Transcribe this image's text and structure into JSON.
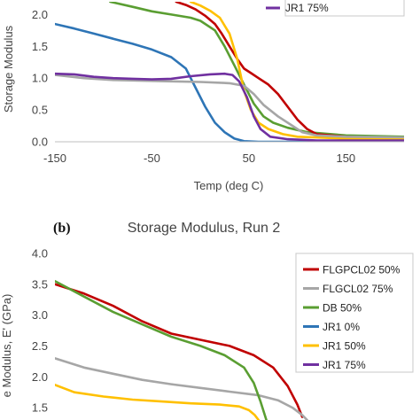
{
  "chart_data": [
    {
      "type": "line",
      "panel": "",
      "title": "",
      "xlabel": "Temp (deg C)",
      "ylabel": "Storage Modulus",
      "xlim": [
        -150,
        210
      ],
      "ylim": [
        0,
        2.2
      ],
      "xticks": [
        "-150",
        "-50",
        "50",
        "150"
      ],
      "yticks": [
        "0.0",
        "0.5",
        "1.0",
        "1.5",
        "2.0"
      ],
      "grid": false,
      "legend": {
        "placement": "top-right",
        "entries": [
          "JR1 75%"
        ],
        "colors": [
          "#7030a0"
        ]
      },
      "series": [
        {
          "name": "",
          "color": "#2e75b6",
          "points": [
            [
              -150,
              1.85
            ],
            [
              -130,
              1.78
            ],
            [
              -110,
              1.7
            ],
            [
              -90,
              1.62
            ],
            [
              -70,
              1.54
            ],
            [
              -50,
              1.45
            ],
            [
              -30,
              1.33
            ],
            [
              -15,
              1.15
            ],
            [
              -5,
              0.85
            ],
            [
              5,
              0.55
            ],
            [
              15,
              0.3
            ],
            [
              25,
              0.15
            ],
            [
              35,
              0.05
            ],
            [
              45,
              0.01
            ],
            [
              60,
              0.0
            ],
            [
              80,
              0.0
            ],
            [
              210,
              0.0
            ]
          ]
        },
        {
          "name": "",
          "color": "#5a9e32",
          "points": [
            [
              -93,
              2.2
            ],
            [
              -70,
              2.12
            ],
            [
              -50,
              2.05
            ],
            [
              -30,
              2.0
            ],
            [
              -10,
              1.95
            ],
            [
              0,
              1.9
            ],
            [
              15,
              1.75
            ],
            [
              25,
              1.5
            ],
            [
              35,
              1.2
            ],
            [
              45,
              0.9
            ],
            [
              55,
              0.6
            ],
            [
              65,
              0.4
            ],
            [
              75,
              0.3
            ],
            [
              90,
              0.22
            ],
            [
              110,
              0.15
            ],
            [
              150,
              0.1
            ],
            [
              210,
              0.08
            ]
          ]
        },
        {
          "name": "",
          "color": "#c00000",
          "points": [
            [
              -25,
              2.2
            ],
            [
              -15,
              2.15
            ],
            [
              -5,
              2.08
            ],
            [
              5,
              1.98
            ],
            [
              15,
              1.85
            ],
            [
              22,
              1.7
            ],
            [
              30,
              1.5
            ],
            [
              38,
              1.3
            ],
            [
              45,
              1.15
            ],
            [
              52,
              1.08
            ],
            [
              60,
              1.0
            ],
            [
              70,
              0.9
            ],
            [
              80,
              0.75
            ],
            [
              90,
              0.55
            ],
            [
              100,
              0.35
            ],
            [
              110,
              0.2
            ],
            [
              120,
              0.12
            ],
            [
              150,
              0.08
            ],
            [
              210,
              0.05
            ]
          ]
        },
        {
          "name": "",
          "color": "#ffc000",
          "points": [
            [
              -10,
              2.2
            ],
            [
              0,
              2.14
            ],
            [
              10,
              2.06
            ],
            [
              20,
              1.95
            ],
            [
              30,
              1.7
            ],
            [
              38,
              1.3
            ],
            [
              45,
              0.8
            ],
            [
              52,
              0.5
            ],
            [
              60,
              0.3
            ],
            [
              70,
              0.2
            ],
            [
              85,
              0.12
            ],
            [
              100,
              0.08
            ],
            [
              150,
              0.05
            ],
            [
              210,
              0.04
            ]
          ]
        },
        {
          "name": "",
          "color": "#a6a6a6",
          "points": [
            [
              -150,
              1.05
            ],
            [
              -120,
              1.0
            ],
            [
              -90,
              0.97
            ],
            [
              -60,
              0.96
            ],
            [
              -30,
              0.95
            ],
            [
              0,
              0.94
            ],
            [
              30,
              0.92
            ],
            [
              45,
              0.88
            ],
            [
              55,
              0.75
            ],
            [
              65,
              0.58
            ],
            [
              80,
              0.4
            ],
            [
              95,
              0.25
            ],
            [
              105,
              0.15
            ],
            [
              120,
              0.1
            ],
            [
              150,
              0.08
            ],
            [
              210,
              0.07
            ]
          ]
        },
        {
          "name": "JR1 75%",
          "color": "#7030a0",
          "points": [
            [
              -150,
              1.07
            ],
            [
              -130,
              1.06
            ],
            [
              -110,
              1.02
            ],
            [
              -90,
              1.0
            ],
            [
              -70,
              0.99
            ],
            [
              -50,
              0.98
            ],
            [
              -30,
              0.99
            ],
            [
              -10,
              1.03
            ],
            [
              10,
              1.06
            ],
            [
              25,
              1.07
            ],
            [
              33,
              1.05
            ],
            [
              40,
              0.95
            ],
            [
              48,
              0.7
            ],
            [
              55,
              0.4
            ],
            [
              62,
              0.2
            ],
            [
              72,
              0.08
            ],
            [
              90,
              0.04
            ],
            [
              120,
              0.02
            ],
            [
              210,
              0.02
            ]
          ]
        }
      ]
    },
    {
      "type": "line",
      "panel": "(b)",
      "title": "Storage Modulus, Run 2",
      "xlabel": "",
      "ylabel": "e Modulus, E' (GPa)",
      "xlim": [
        -150,
        210
      ],
      "ylim": [
        1.3,
        4.0
      ],
      "xticks": [],
      "yticks": [
        "1.5",
        "2.0",
        "2.5",
        "3.0",
        "3.5",
        "4.0"
      ],
      "grid": false,
      "legend": {
        "placement": "right",
        "entries": [
          "FLGPCL02 50%",
          "FLGCL02 75%",
          "DB 50%",
          "JR1 0%",
          "JR1 50%",
          "JR1 75%"
        ],
        "colors": [
          "#c00000",
          "#a6a6a6",
          "#5a9e32",
          "#2e75b6",
          "#ffc000",
          "#7030a0"
        ]
      },
      "series": [
        {
          "name": "FLGPCL02 50%",
          "color": "#c00000",
          "points": [
            [
              -150,
              3.5
            ],
            [
              -120,
              3.35
            ],
            [
              -90,
              3.15
            ],
            [
              -60,
              2.9
            ],
            [
              -30,
              2.7
            ],
            [
              0,
              2.6
            ],
            [
              30,
              2.5
            ],
            [
              55,
              2.35
            ],
            [
              75,
              2.15
            ],
            [
              90,
              1.85
            ],
            [
              100,
              1.55
            ],
            [
              105,
              1.35
            ]
          ]
        },
        {
          "name": "FLGCL02 75%",
          "color": "#a6a6a6",
          "points": [
            [
              -150,
              2.3
            ],
            [
              -120,
              2.15
            ],
            [
              -90,
              2.05
            ],
            [
              -60,
              1.95
            ],
            [
              -30,
              1.88
            ],
            [
              0,
              1.82
            ],
            [
              30,
              1.76
            ],
            [
              60,
              1.7
            ],
            [
              80,
              1.62
            ],
            [
              95,
              1.5
            ],
            [
              105,
              1.38
            ],
            [
              110,
              1.3
            ]
          ]
        },
        {
          "name": "DB 50%",
          "color": "#5a9e32",
          "points": [
            [
              -150,
              3.55
            ],
            [
              -120,
              3.3
            ],
            [
              -90,
              3.05
            ],
            [
              -60,
              2.85
            ],
            [
              -30,
              2.65
            ],
            [
              0,
              2.5
            ],
            [
              25,
              2.35
            ],
            [
              45,
              2.15
            ],
            [
              55,
              1.9
            ],
            [
              62,
              1.6
            ],
            [
              68,
              1.3
            ]
          ]
        },
        {
          "name": "JR1 0%",
          "color": "#2e75b6",
          "points": []
        },
        {
          "name": "JR1 50%",
          "color": "#ffc000",
          "points": [
            [
              -150,
              1.87
            ],
            [
              -130,
              1.75
            ],
            [
              -100,
              1.68
            ],
            [
              -70,
              1.63
            ],
            [
              -40,
              1.6
            ],
            [
              -10,
              1.57
            ],
            [
              20,
              1.55
            ],
            [
              40,
              1.52
            ],
            [
              50,
              1.46
            ],
            [
              56,
              1.38
            ],
            [
              60,
              1.3
            ]
          ]
        },
        {
          "name": "JR1 75%",
          "color": "#7030a0",
          "points": []
        }
      ]
    }
  ]
}
